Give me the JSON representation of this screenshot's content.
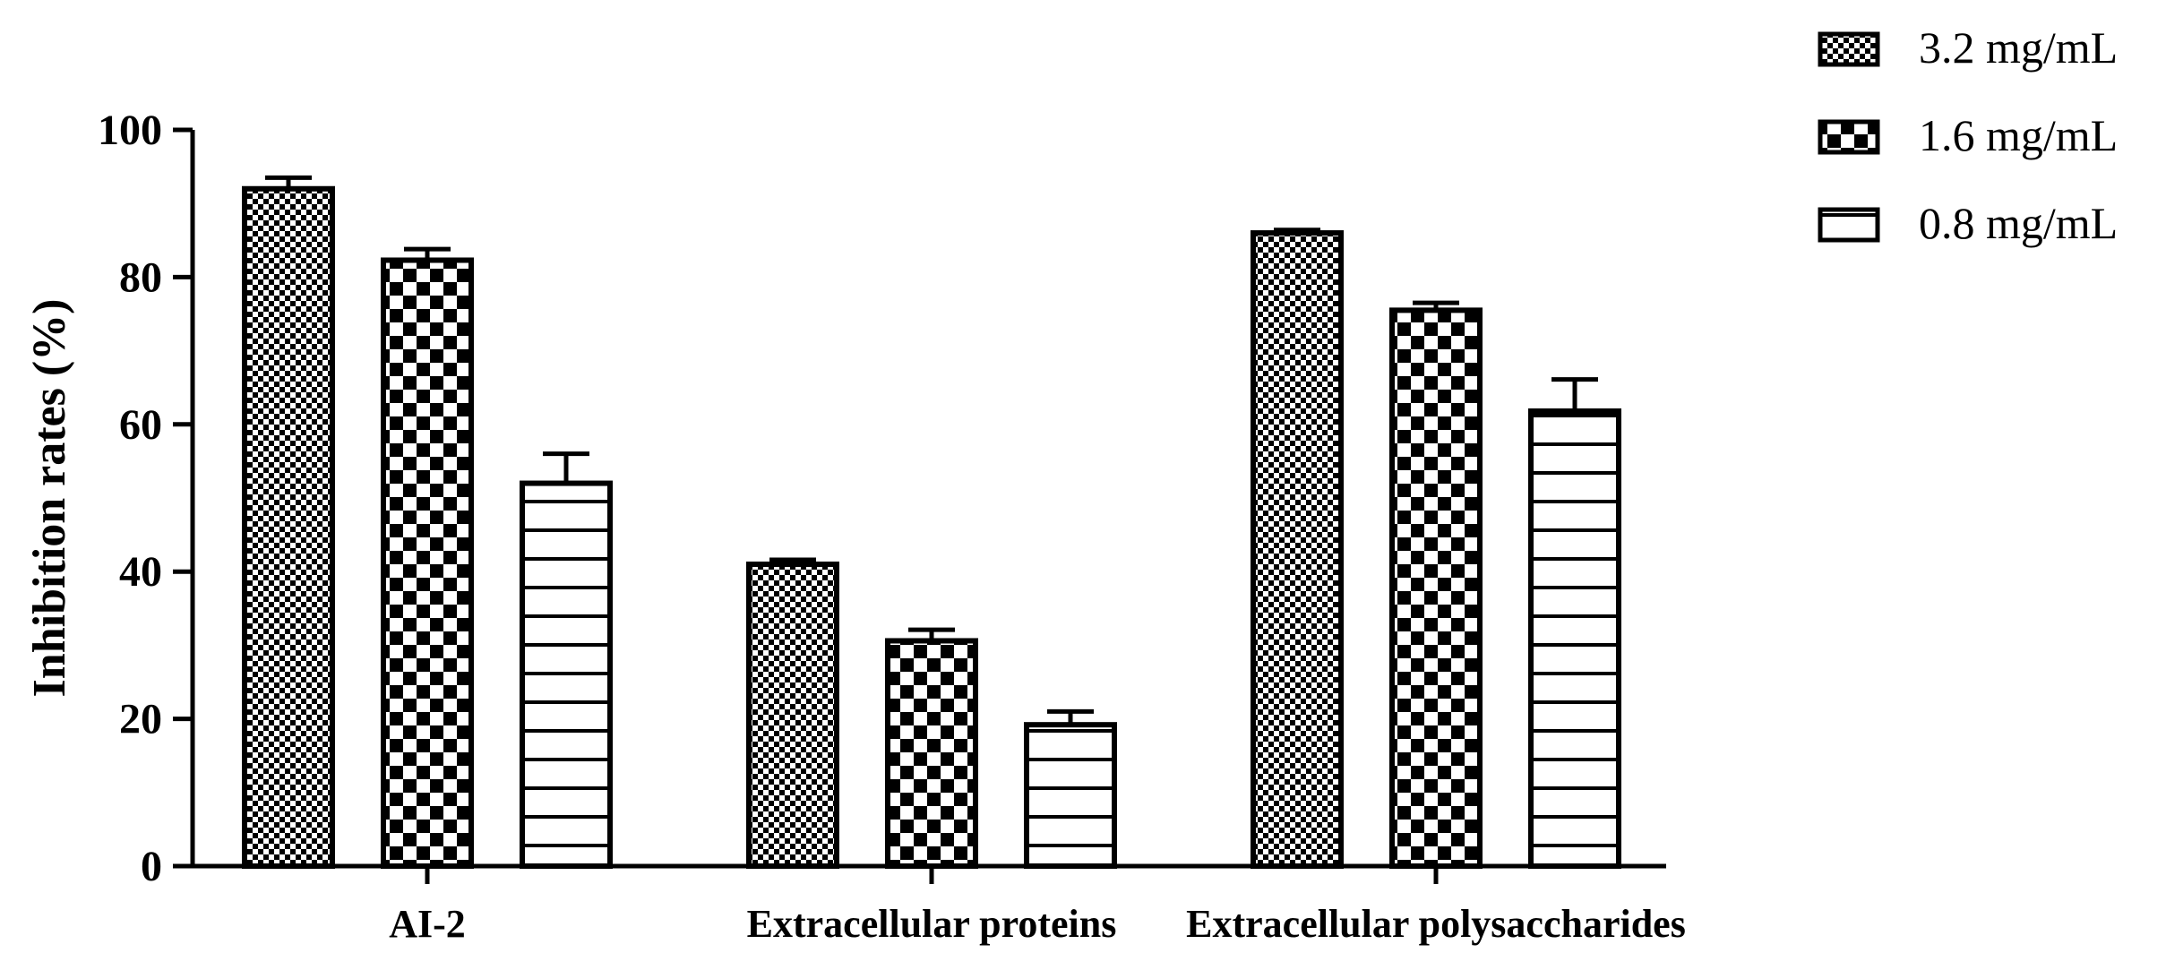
{
  "chart_data": {
    "type": "bar",
    "categories": [
      "AI-2",
      "Extracellular proteins",
      "Extracellular polysaccharides"
    ],
    "series": [
      {
        "name": "3.2 mg/mL",
        "values": [
          92,
          41,
          86
        ],
        "errors": [
          1.5,
          0.6,
          0.4
        ],
        "pattern": "fine-check"
      },
      {
        "name": "1.6 mg/mL",
        "values": [
          82.3,
          30.6,
          75.5
        ],
        "errors": [
          1.5,
          1.5,
          1.0
        ],
        "pattern": "coarse-check"
      },
      {
        "name": "0.8 mg/mL",
        "values": [
          52,
          19.2,
          61.8
        ],
        "errors": [
          4.0,
          1.8,
          4.3
        ],
        "pattern": "horizontal-lines"
      }
    ],
    "xlabel": "",
    "ylabel": "Inhibition rates (%)",
    "ylim": [
      0,
      100
    ],
    "yticks": [
      0,
      20,
      40,
      60,
      80,
      100
    ],
    "grid": false,
    "legend": "top-right",
    "colors": {
      "bar_stroke": "#000000",
      "background": "#ffffff"
    }
  }
}
